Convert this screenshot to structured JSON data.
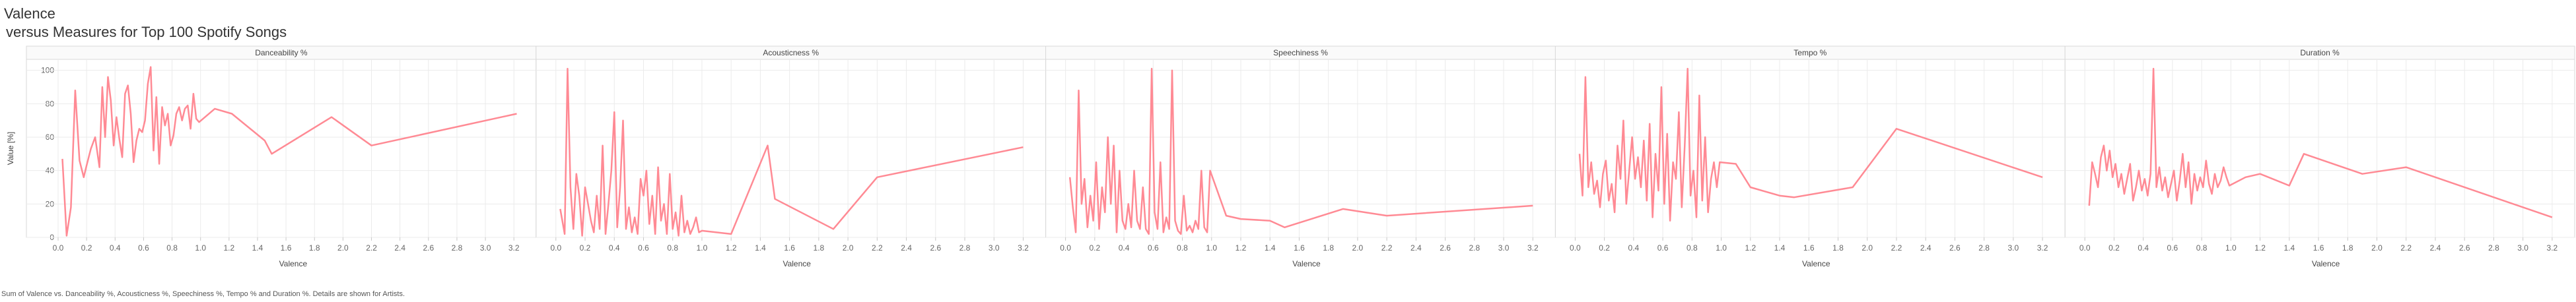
{
  "title": "Valence",
  "subtitle": "versus Measures for Top 100 Spotify Songs",
  "caption": "Sum of Valence vs. Danceability %, Acousticness %, Speechiness %, Tempo % and Duration %.  Details are shown for Artists.",
  "colors": {
    "line": "#ff8a94",
    "grid": "#ebebeb",
    "frame": "#d9d9d9",
    "axis": "#c8c8c8"
  },
  "chart_data": {
    "type": "line",
    "title": "Valence",
    "subtitle": "versus Measures for Top 100 Spotify Songs",
    "xlabel": "Valence",
    "ylabel": "Value [%]",
    "xlim": [
      0,
      3.3
    ],
    "ylim": [
      0,
      105
    ],
    "x_ticks": [
      "0.0",
      "0.2",
      "0.4",
      "0.6",
      "0.8",
      "1.0",
      "1.2",
      "1.4",
      "1.6",
      "1.8",
      "2.0",
      "2.2",
      "2.4",
      "2.6",
      "2.8",
      "3.0",
      "3.2"
    ],
    "y_ticks": [
      "0",
      "20",
      "40",
      "60",
      "80",
      "100"
    ],
    "grid": true,
    "series": [
      {
        "name": "Danceability %",
        "x": [
          0.03,
          0.06,
          0.09,
          0.12,
          0.15,
          0.18,
          0.2,
          0.23,
          0.26,
          0.29,
          0.31,
          0.33,
          0.35,
          0.37,
          0.39,
          0.41,
          0.43,
          0.45,
          0.47,
          0.49,
          0.51,
          0.53,
          0.55,
          0.57,
          0.59,
          0.61,
          0.63,
          0.65,
          0.67,
          0.69,
          0.71,
          0.73,
          0.75,
          0.77,
          0.79,
          0.81,
          0.83,
          0.85,
          0.87,
          0.89,
          0.91,
          0.93,
          0.95,
          0.97,
          0.99,
          1.1,
          1.22,
          1.45,
          1.5,
          1.92,
          2.2,
          3.22
        ],
        "y": [
          47,
          1,
          18,
          88,
          46,
          36,
          43,
          53,
          60,
          42,
          90,
          60,
          96,
          82,
          55,
          72,
          59,
          48,
          86,
          91,
          74,
          45,
          58,
          65,
          63,
          70,
          92,
          102,
          52,
          84,
          44,
          78,
          67,
          74,
          55,
          61,
          74,
          78,
          70,
          77,
          79,
          65,
          86,
          71,
          69,
          77,
          74,
          58,
          50,
          72,
          55,
          74
        ]
      },
      {
        "name": "Acousticness %",
        "x": [
          0.03,
          0.06,
          0.08,
          0.1,
          0.12,
          0.14,
          0.16,
          0.18,
          0.2,
          0.22,
          0.24,
          0.26,
          0.28,
          0.3,
          0.32,
          0.34,
          0.36,
          0.38,
          0.4,
          0.42,
          0.44,
          0.46,
          0.48,
          0.5,
          0.52,
          0.54,
          0.56,
          0.58,
          0.6,
          0.62,
          0.64,
          0.66,
          0.68,
          0.7,
          0.72,
          0.74,
          0.76,
          0.78,
          0.8,
          0.82,
          0.84,
          0.86,
          0.88,
          0.9,
          0.92,
          0.94,
          0.96,
          0.98,
          1.0,
          1.2,
          1.45,
          1.5,
          1.9,
          2.2,
          3.2
        ],
        "y": [
          17,
          2,
          101,
          30,
          5,
          38,
          25,
          1,
          30,
          20,
          10,
          3,
          25,
          5,
          55,
          2,
          20,
          40,
          75,
          6,
          30,
          70,
          5,
          18,
          3,
          12,
          2,
          35,
          25,
          40,
          8,
          25,
          2,
          42,
          10,
          20,
          2,
          38,
          5,
          15,
          1,
          25,
          3,
          10,
          2,
          6,
          12,
          3,
          4,
          2,
          55,
          23,
          5,
          36,
          54
        ]
      },
      {
        "name": "Speechiness %",
        "x": [
          0.03,
          0.05,
          0.07,
          0.09,
          0.11,
          0.13,
          0.15,
          0.17,
          0.19,
          0.21,
          0.23,
          0.25,
          0.27,
          0.29,
          0.31,
          0.33,
          0.35,
          0.37,
          0.39,
          0.41,
          0.43,
          0.45,
          0.47,
          0.49,
          0.51,
          0.53,
          0.55,
          0.57,
          0.59,
          0.61,
          0.63,
          0.65,
          0.67,
          0.69,
          0.71,
          0.73,
          0.75,
          0.77,
          0.79,
          0.81,
          0.83,
          0.85,
          0.87,
          0.89,
          0.91,
          0.93,
          0.95,
          0.97,
          0.99,
          1.1,
          1.2,
          1.4,
          1.5,
          1.9,
          2.2,
          3.2
        ],
        "y": [
          36,
          18,
          3,
          88,
          20,
          35,
          6,
          25,
          10,
          45,
          5,
          30,
          15,
          60,
          20,
          55,
          3,
          40,
          10,
          5,
          20,
          6,
          40,
          10,
          5,
          30,
          5,
          2,
          101,
          15,
          5,
          45,
          3,
          12,
          5,
          100,
          10,
          4,
          2,
          25,
          4,
          7,
          3,
          10,
          5,
          40,
          6,
          3,
          40,
          13,
          11,
          10,
          6,
          17,
          13,
          19
        ]
      },
      {
        "name": "Tempo %",
        "x": [
          0.03,
          0.05,
          0.07,
          0.09,
          0.11,
          0.13,
          0.15,
          0.17,
          0.19,
          0.21,
          0.23,
          0.25,
          0.27,
          0.29,
          0.31,
          0.33,
          0.35,
          0.37,
          0.39,
          0.41,
          0.43,
          0.45,
          0.47,
          0.49,
          0.51,
          0.53,
          0.55,
          0.57,
          0.59,
          0.61,
          0.63,
          0.65,
          0.67,
          0.69,
          0.71,
          0.73,
          0.75,
          0.77,
          0.79,
          0.81,
          0.83,
          0.85,
          0.87,
          0.89,
          0.91,
          0.93,
          0.95,
          0.97,
          0.99,
          1.1,
          1.2,
          1.4,
          1.5,
          1.9,
          2.2,
          3.2
        ],
        "y": [
          50,
          25,
          96,
          30,
          45,
          26,
          34,
          18,
          38,
          46,
          22,
          32,
          15,
          55,
          35,
          70,
          20,
          40,
          60,
          35,
          48,
          30,
          58,
          22,
          68,
          12,
          50,
          28,
          90,
          20,
          62,
          10,
          45,
          35,
          75,
          18,
          55,
          101,
          25,
          40,
          12,
          85,
          22,
          60,
          15,
          35,
          45,
          30,
          45,
          44,
          30,
          25,
          24,
          30,
          65,
          36
        ]
      },
      {
        "name": "Duration %",
        "x": [
          0.03,
          0.05,
          0.07,
          0.09,
          0.11,
          0.13,
          0.15,
          0.17,
          0.19,
          0.21,
          0.23,
          0.25,
          0.27,
          0.29,
          0.31,
          0.33,
          0.35,
          0.37,
          0.39,
          0.41,
          0.43,
          0.45,
          0.47,
          0.49,
          0.51,
          0.53,
          0.55,
          0.57,
          0.59,
          0.61,
          0.63,
          0.65,
          0.67,
          0.69,
          0.71,
          0.73,
          0.75,
          0.77,
          0.79,
          0.81,
          0.83,
          0.85,
          0.87,
          0.89,
          0.91,
          0.93,
          0.95,
          0.97,
          0.99,
          1.1,
          1.2,
          1.4,
          1.5,
          1.9,
          2.2,
          3.2
        ],
        "y": [
          19,
          45,
          38,
          30,
          48,
          55,
          40,
          52,
          36,
          44,
          30,
          38,
          26,
          35,
          44,
          22,
          30,
          40,
          28,
          35,
          25,
          38,
          101,
          30,
          42,
          28,
          36,
          24,
          32,
          40,
          22,
          34,
          50,
          30,
          45,
          20,
          38,
          28,
          36,
          30,
          46,
          32,
          26,
          38,
          30,
          34,
          42,
          36,
          31,
          36,
          38,
          31,
          50,
          38,
          42,
          12
        ]
      }
    ]
  }
}
